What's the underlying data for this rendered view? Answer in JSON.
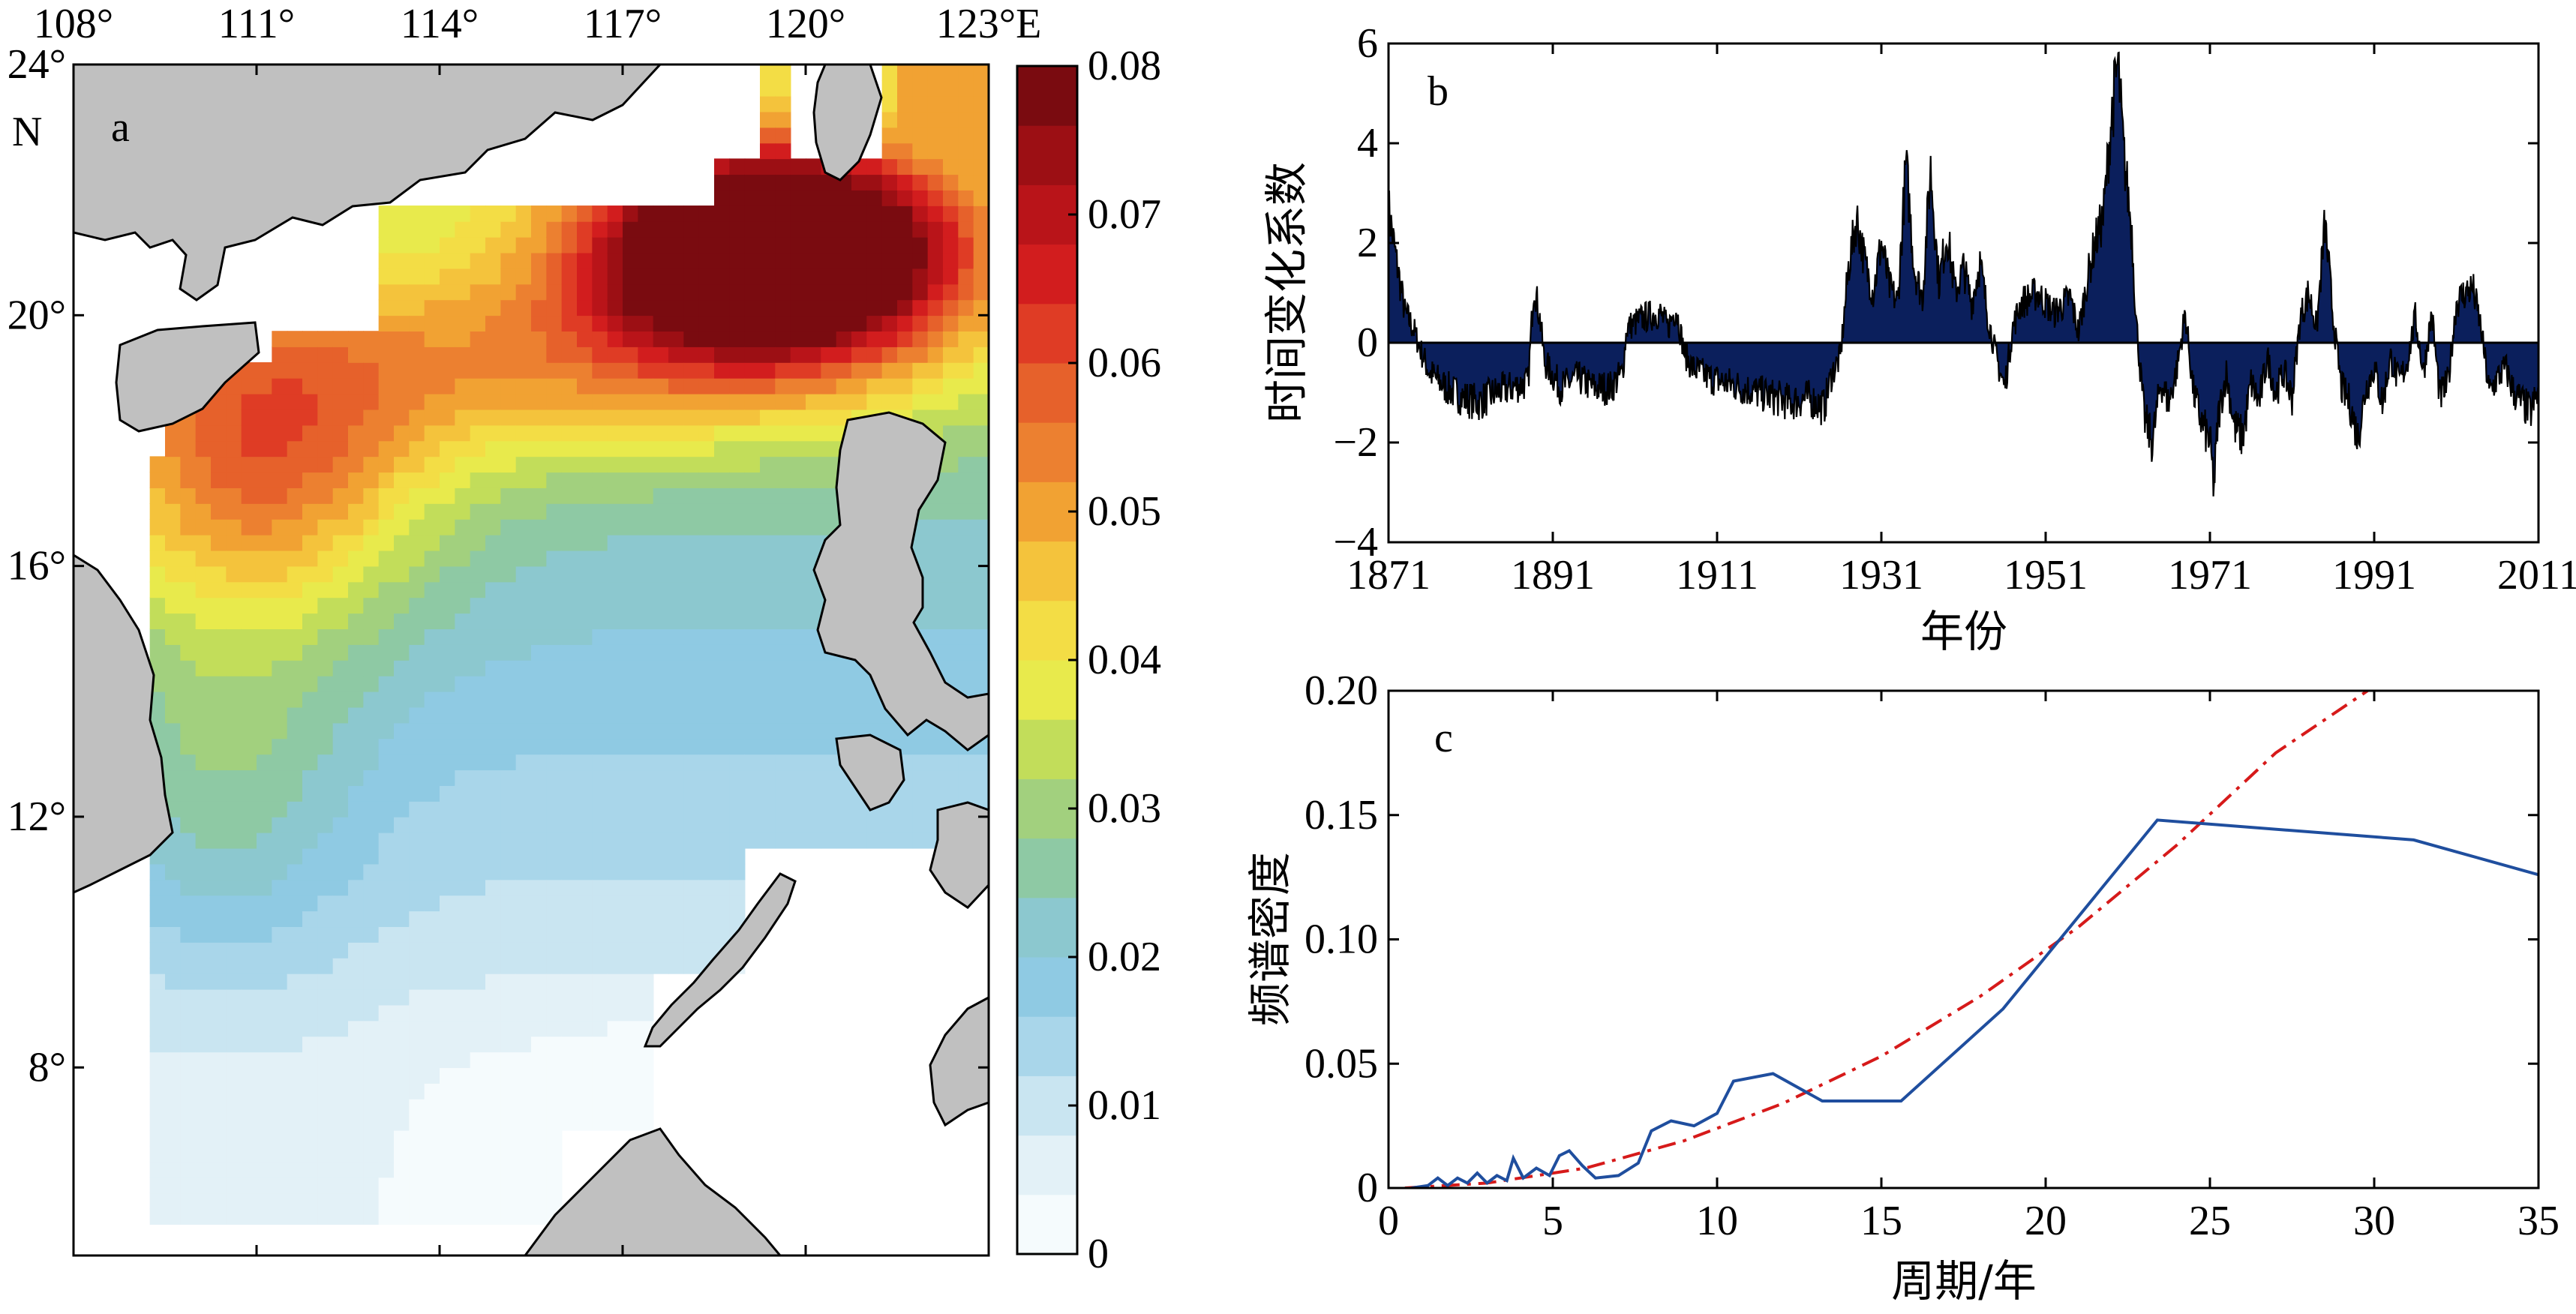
{
  "colors": {
    "land": "#c0c0c0",
    "coast": "#000000",
    "bar_fill": "#0b1f5c",
    "line_outline": "#000000",
    "spectrum": "#1f4e9e",
    "fit": "#d61a1a"
  },
  "colormap": [
    "#f5fbfd",
    "#e3f1f7",
    "#c9e5f1",
    "#a9d6ea",
    "#8fcae3",
    "#8cc8cf",
    "#8ec9a4",
    "#a2d07e",
    "#c2dd5a",
    "#e8ea4c",
    "#f3dd45",
    "#f4c33c",
    "#f1a233",
    "#ec8030",
    "#e6612b",
    "#df3c25",
    "#d21d1e",
    "#b91419",
    "#9c0f14",
    "#7a0b10"
  ],
  "chart_data": [
    {
      "panel": "a",
      "type": "heatmap",
      "title": "a",
      "x_ticks": [
        "108°",
        "111°",
        "114°",
        "117°",
        "120°",
        "123°E"
      ],
      "y_ticks": [
        "24°",
        "20°",
        "16°",
        "12°",
        "8°"
      ],
      "y_unit": "N",
      "xlim": [
        108,
        123
      ],
      "ylim": [
        5,
        24
      ],
      "colorbar": {
        "ticks": [
          "0",
          "0.01",
          "0.02",
          "0.03",
          "0.04",
          "0.05",
          "0.06",
          "0.07",
          "0.08"
        ],
        "range": [
          0,
          0.08
        ]
      },
      "maximum_region_lon_lat": [
        119.5,
        21
      ]
    },
    {
      "panel": "b",
      "type": "bar",
      "title": "b",
      "xlabel": "年份",
      "ylabel": "时间变化系数",
      "x_ticks": [
        "1871",
        "1891",
        "1911",
        "1931",
        "1951",
        "1971",
        "1991",
        "2011"
      ],
      "y_ticks": [
        "−4",
        "−2",
        "0",
        "2",
        "4",
        "6"
      ],
      "xlim": [
        1871,
        2011
      ],
      "ylim": [
        -4,
        6
      ],
      "series_points": [
        [
          1871,
          2.7
        ],
        [
          1872,
          1.6
        ],
        [
          1873,
          0.6
        ],
        [
          1874,
          0.3
        ],
        [
          1875,
          -0.2
        ],
        [
          1876,
          -0.6
        ],
        [
          1878,
          -0.9
        ],
        [
          1880,
          -1.1
        ],
        [
          1882,
          -1.2
        ],
        [
          1884,
          -1.0
        ],
        [
          1886,
          -0.9
        ],
        [
          1888,
          -0.8
        ],
        [
          1888.7,
          1.2
        ],
        [
          1889.5,
          0.4
        ],
        [
          1890,
          -0.4
        ],
        [
          1892,
          -0.9
        ],
        [
          1894,
          -0.7
        ],
        [
          1896,
          -0.9
        ],
        [
          1898,
          -0.9
        ],
        [
          1899.5,
          -0.6
        ],
        [
          1900,
          0.3
        ],
        [
          1902,
          0.5
        ],
        [
          1904,
          0.6
        ],
        [
          1905,
          0.3
        ],
        [
          1906,
          0.7
        ],
        [
          1907,
          -0.2
        ],
        [
          1908,
          -0.5
        ],
        [
          1910,
          -0.7
        ],
        [
          1912,
          -0.8
        ],
        [
          1914,
          -0.9
        ],
        [
          1916,
          -1.0
        ],
        [
          1918,
          -1.1
        ],
        [
          1920,
          -1.2
        ],
        [
          1922,
          -1.1
        ],
        [
          1924,
          -1.3
        ],
        [
          1925,
          -0.6
        ],
        [
          1926,
          -0.3
        ],
        [
          1927,
          1.5
        ],
        [
          1928,
          2.5
        ],
        [
          1929,
          1.6
        ],
        [
          1930,
          1.0
        ],
        [
          1931,
          2.0
        ],
        [
          1932,
          1.1
        ],
        [
          1933,
          0.8
        ],
        [
          1934,
          3.6
        ],
        [
          1935,
          1.5
        ],
        [
          1936,
          0.9
        ],
        [
          1937,
          3.5
        ],
        [
          1938,
          1.2
        ],
        [
          1939,
          2.2
        ],
        [
          1940,
          1.0
        ],
        [
          1941,
          1.5
        ],
        [
          1942,
          0.8
        ],
        [
          1943,
          1.6
        ],
        [
          1944,
          0.5
        ],
        [
          1945,
          -0.3
        ],
        [
          1946,
          -0.9
        ],
        [
          1947,
          0.3
        ],
        [
          1948,
          0.8
        ],
        [
          1950,
          1.0
        ],
        [
          1952,
          0.6
        ],
        [
          1954,
          0.9
        ],
        [
          1955,
          0.2
        ],
        [
          1956,
          1.2
        ],
        [
          1957,
          2.0
        ],
        [
          1958,
          2.5
        ],
        [
          1959,
          4.5
        ],
        [
          1959.8,
          5.6
        ],
        [
          1960.5,
          3.8
        ],
        [
          1961.5,
          2.2
        ],
        [
          1962,
          0.5
        ],
        [
          1963,
          -1.5
        ],
        [
          1964,
          -2.0
        ],
        [
          1965,
          -0.8
        ],
        [
          1966,
          -1.2
        ],
        [
          1967,
          -0.5
        ],
        [
          1968,
          0.6
        ],
        [
          1969,
          -1.0
        ],
        [
          1970,
          -1.6
        ],
        [
          1971,
          -2.0
        ],
        [
          1971.5,
          -2.9
        ],
        [
          1972,
          -1.5
        ],
        [
          1973,
          -0.6
        ],
        [
          1974,
          -1.7
        ],
        [
          1975,
          -1.9
        ],
        [
          1976,
          -0.8
        ],
        [
          1977,
          -1.2
        ],
        [
          1978,
          -0.3
        ],
        [
          1979,
          -1.0
        ],
        [
          1980,
          -0.6
        ],
        [
          1981,
          -1.1
        ],
        [
          1982,
          0.5
        ],
        [
          1983,
          1.0
        ],
        [
          1984,
          0.3
        ],
        [
          1985,
          2.4
        ],
        [
          1986,
          0.5
        ],
        [
          1987,
          -0.9
        ],
        [
          1988,
          -1.2
        ],
        [
          1989,
          -1.9
        ],
        [
          1990,
          -0.9
        ],
        [
          1991,
          -0.5
        ],
        [
          1992,
          -1.2
        ],
        [
          1993,
          -0.3
        ],
        [
          1994,
          -0.8
        ],
        [
          1995,
          -0.4
        ],
        [
          1996,
          0.5
        ],
        [
          1997,
          -0.6
        ],
        [
          1998,
          0.6
        ],
        [
          1999,
          -1.1
        ],
        [
          2000,
          -0.8
        ],
        [
          2001,
          0.8
        ],
        [
          2002,
          1.0
        ],
        [
          2003,
          1.1
        ],
        [
          2004,
          0.3
        ],
        [
          2005,
          -1.0
        ],
        [
          2006,
          -0.7
        ],
        [
          2007,
          -0.5
        ],
        [
          2008,
          -1.0
        ],
        [
          2009,
          -1.2
        ],
        [
          2010,
          -1.4
        ],
        [
          2011,
          -1.0
        ]
      ]
    },
    {
      "panel": "c",
      "type": "line",
      "title": "c",
      "xlabel": "周期/年",
      "ylabel": "频谱密度",
      "x_ticks": [
        "0",
        "5",
        "10",
        "15",
        "20",
        "25",
        "30",
        "35"
      ],
      "y_ticks": [
        "0",
        "0.05",
        "0.10",
        "0.15",
        "0.20"
      ],
      "xlim": [
        0,
        35
      ],
      "ylim": [
        0,
        0.2
      ],
      "series": [
        {
          "values": [
            [
              0.7,
              0.0
            ],
            [
              1.2,
              0.001
            ],
            [
              1.5,
              0.004
            ],
            [
              1.8,
              0.001
            ],
            [
              2.1,
              0.004
            ],
            [
              2.4,
              0.002
            ],
            [
              2.7,
              0.006
            ],
            [
              3.0,
              0.002
            ],
            [
              3.3,
              0.005
            ],
            [
              3.6,
              0.003
            ],
            [
              3.8,
              0.012
            ],
            [
              4.1,
              0.004
            ],
            [
              4.5,
              0.008
            ],
            [
              4.9,
              0.005
            ],
            [
              5.2,
              0.013
            ],
            [
              5.5,
              0.015
            ],
            [
              5.9,
              0.009
            ],
            [
              6.3,
              0.004
            ],
            [
              7.0,
              0.005
            ],
            [
              7.6,
              0.01
            ],
            [
              8.0,
              0.023
            ],
            [
              8.6,
              0.027
            ],
            [
              9.3,
              0.025
            ],
            [
              10.0,
              0.03
            ],
            [
              10.5,
              0.043
            ],
            [
              11.7,
              0.046
            ],
            [
              13.2,
              0.035
            ],
            [
              15.6,
              0.035
            ],
            [
              18.7,
              0.072
            ],
            [
              23.4,
              0.148
            ],
            [
              31.2,
              0.14
            ],
            [
              35.0,
              0.126
            ]
          ]
        },
        {
          "values": [
            [
              0.5,
              0.0
            ],
            [
              3,
              0.002
            ],
            [
              6,
              0.008
            ],
            [
              9,
              0.019
            ],
            [
              12,
              0.034
            ],
            [
              15,
              0.053
            ],
            [
              18,
              0.077
            ],
            [
              21,
              0.105
            ],
            [
              24,
              0.138
            ],
            [
              27,
              0.175
            ],
            [
              29.8,
              0.2
            ]
          ]
        }
      ]
    }
  ]
}
